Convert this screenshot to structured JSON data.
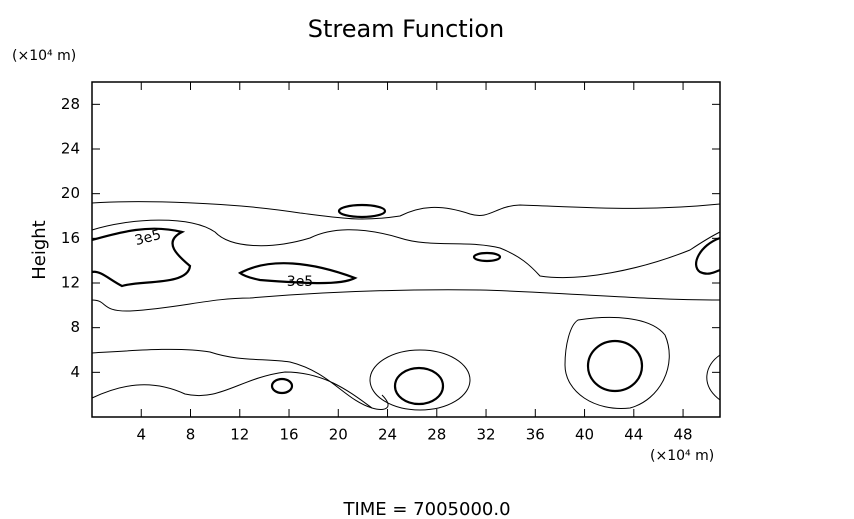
{
  "chart_data": {
    "type": "contour",
    "title": "Stream Function",
    "y_label": "Height",
    "y_unit": "(×10⁴ m)",
    "x_unit": "(×10⁴ m)",
    "xlim": [
      0,
      51
    ],
    "xticks": [
      4,
      8,
      12,
      16,
      20,
      24,
      28,
      32,
      36,
      40,
      44,
      48
    ],
    "ylim": [
      0,
      30
    ],
    "yticks": [
      4,
      8,
      12,
      16,
      20,
      24,
      28
    ],
    "contour_labels": [
      "3e5",
      "3e5"
    ],
    "time_label": "TIME = 7005000.0"
  }
}
